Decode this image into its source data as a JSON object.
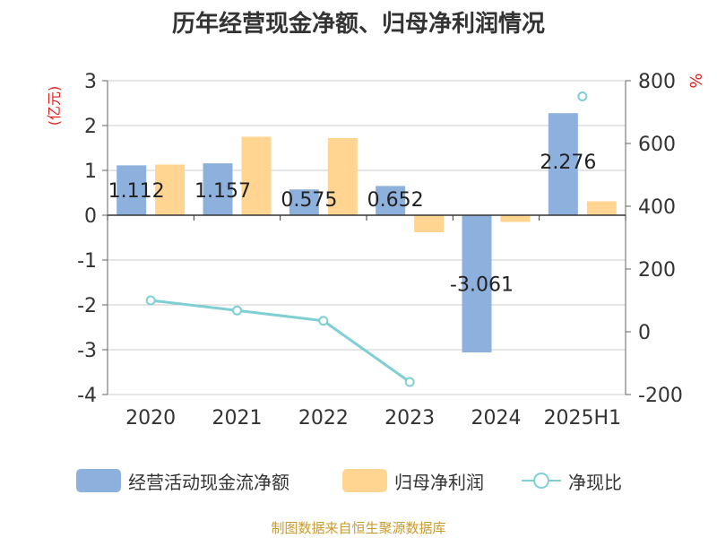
{
  "title": "历年经营现金净额、归母净利润情况",
  "source": "制图数据来自恒生聚源数据库",
  "left_axis_unit": "(亿元)",
  "right_axis_unit": "%",
  "colors": {
    "operating_cash": "#8eb0dc",
    "net_profit": "#ffd591",
    "ratio": "#7fcfd3",
    "left_unit": "#e02020",
    "right_unit": "#e02020",
    "source": "#c89b2e"
  },
  "legend": {
    "operating_cash": "经营活动现金流净额",
    "net_profit": "归母净利润",
    "ratio": "净现比"
  },
  "chart_data": {
    "type": "bar",
    "title": "历年经营现金净额、归母净利润情况",
    "categories": [
      "2020",
      "2021",
      "2022",
      "2023",
      "2024",
      "2025H1"
    ],
    "y_left": {
      "label": "(亿元)",
      "range": [
        -4,
        3
      ],
      "ticks": [
        "3",
        "2",
        "1",
        "0",
        "-1",
        "-2",
        "-3",
        "-4"
      ]
    },
    "y_right": {
      "label": "%",
      "range": [
        -200,
        800
      ],
      "ticks": [
        "800",
        "600",
        "400",
        "200",
        "0",
        "-200"
      ]
    },
    "grid": true,
    "legend_position": "bottom",
    "series": [
      {
        "name": "经营活动现金流净额",
        "type": "bar",
        "axis": "left",
        "values": [
          1.112,
          1.157,
          0.575,
          0.652,
          -3.061,
          2.276
        ],
        "labels": [
          "1.112",
          "1.157",
          "0.575",
          "0.652",
          "-3.061",
          "2.276"
        ]
      },
      {
        "name": "归母净利润",
        "type": "bar",
        "axis": "left",
        "values": [
          1.13,
          1.75,
          1.72,
          -0.38,
          -0.15,
          0.31
        ]
      },
      {
        "name": "净现比",
        "type": "line",
        "axis": "right",
        "values": [
          100,
          68,
          35,
          -160,
          null,
          750
        ]
      }
    ]
  }
}
